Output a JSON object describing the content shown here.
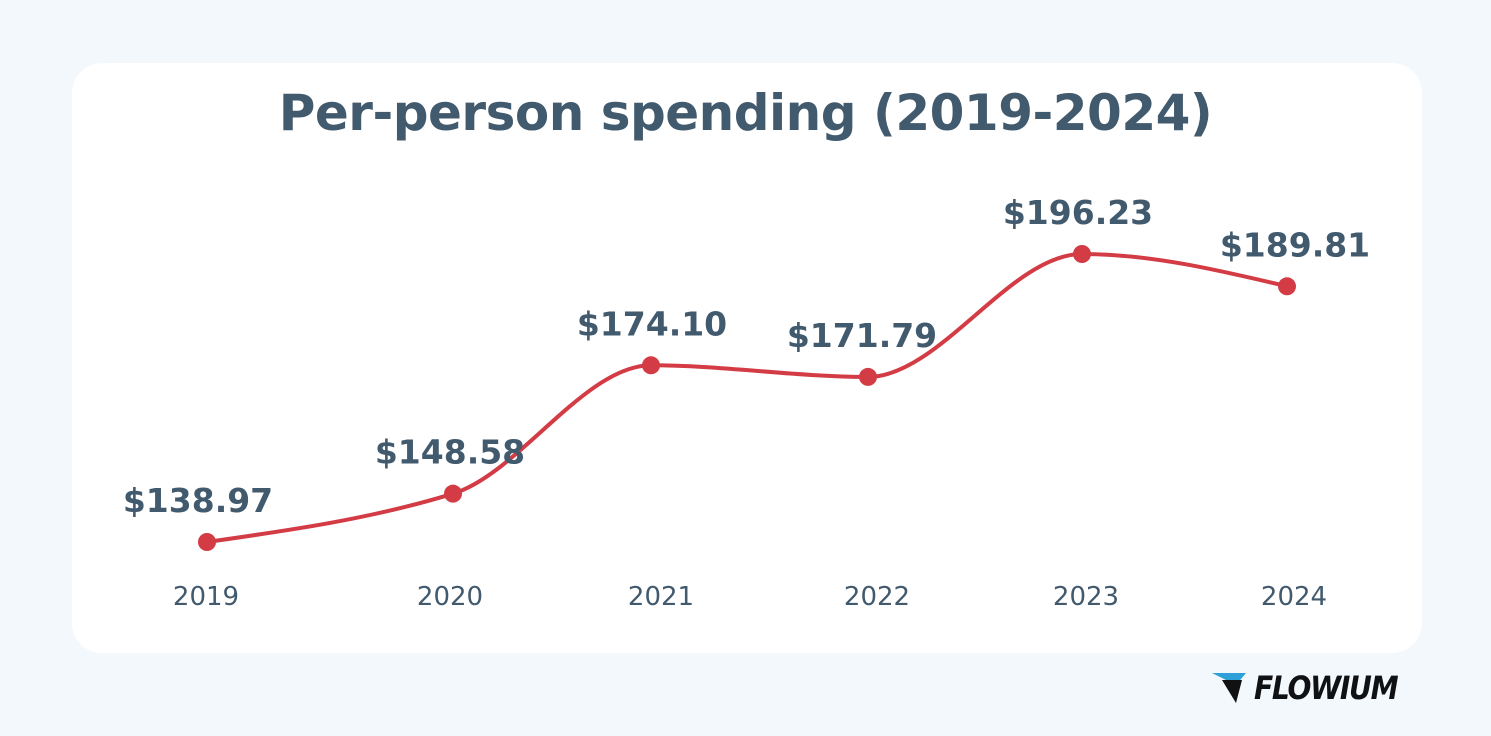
{
  "colors": {
    "background": "#f3f8fd",
    "card": "#ffffff",
    "text": "#425a6e",
    "line": "#d33b45",
    "brand_mark": "#2d9fd9",
    "brand_text": "#0f1113"
  },
  "brand": {
    "name": "FLOWIUM",
    "icon": "flowium-logo-icon"
  },
  "chart_data": {
    "type": "line",
    "title": "Per-person spending (2019-2024)",
    "xlabel": "",
    "ylabel": "",
    "categories": [
      "2019",
      "2020",
      "2021",
      "2022",
      "2023",
      "2024"
    ],
    "series": [
      {
        "values": [
          138.97,
          148.58,
          174.1,
          171.79,
          196.23,
          189.81
        ],
        "labels": [
          "$138.97",
          "$148.58",
          "$174.10",
          "$171.79",
          "$196.23",
          "$189.81"
        ]
      }
    ],
    "smooth": true,
    "show_markers": true,
    "grid": false,
    "y_axis_visible": false,
    "legend": "none"
  }
}
